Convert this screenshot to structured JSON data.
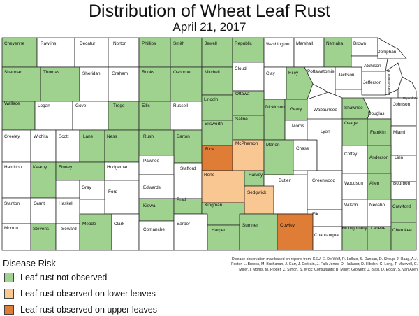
{
  "title": "Distribution of Wheat Leaf Rust",
  "subtitle": "April 21, 2017",
  "legend": {
    "title": "Disease Risk",
    "items": [
      {
        "key": "not_observed",
        "label": "Leaf rust not observed",
        "color": "#9fd18f"
      },
      {
        "key": "lower",
        "label": "Leaf rust observed on lower leaves",
        "color": "#f9c792"
      },
      {
        "key": "upper",
        "label": "Leaf rust observed on upper leaves",
        "color": "#df7d37"
      }
    ]
  },
  "status_colors": {
    "none": "#ffffff"
  },
  "credit": "Disease observation map based on reports from: KSU: E. De Wolf, R. Lollato, S. Duncan, D. Shoup, J. Haag, A.J. Foster, L. Brooks, M. Buchanan, J. Carr, J. Coltrain, J. Falk-Jones, D. Hallauer, D. Hibdon, C. Long, T. Maxwell, C. Miller, I. Morris, M. Ploger, Z. Simon, S. Wick; Consultants: B. Miller; Growers: J. Blasi, D. Edgar, S. Van Allen",
  "counties": [
    {
      "name": "Cheyenne",
      "status": "not_observed"
    },
    {
      "name": "Rawlins",
      "status": "none"
    },
    {
      "name": "Decatur",
      "status": "none"
    },
    {
      "name": "Norton",
      "status": "none"
    },
    {
      "name": "Phillips",
      "status": "not_observed"
    },
    {
      "name": "Smith",
      "status": "not_observed"
    },
    {
      "name": "Jewell",
      "status": "not_observed"
    },
    {
      "name": "Republic",
      "status": "not_observed"
    },
    {
      "name": "Washington",
      "status": "none"
    },
    {
      "name": "Marshall",
      "status": "none"
    },
    {
      "name": "Nemaha",
      "status": "not_observed"
    },
    {
      "name": "Brown",
      "status": "none"
    },
    {
      "name": "Doniphan",
      "status": "none"
    },
    {
      "name": "Sherman",
      "status": "not_observed"
    },
    {
      "name": "Thomas",
      "status": "not_observed"
    },
    {
      "name": "Sheridan",
      "status": "none"
    },
    {
      "name": "Graham",
      "status": "none"
    },
    {
      "name": "Rooks",
      "status": "not_observed"
    },
    {
      "name": "Osborne",
      "status": "not_observed"
    },
    {
      "name": "Mitchell",
      "status": "not_observed"
    },
    {
      "name": "Cloud",
      "status": "none"
    },
    {
      "name": "Clay",
      "status": "none"
    },
    {
      "name": "Riley",
      "status": "not_observed"
    },
    {
      "name": "Pottawatomie",
      "status": "none"
    },
    {
      "name": "Jackson",
      "status": "none"
    },
    {
      "name": "Atchison",
      "status": "none"
    },
    {
      "name": "Jefferson",
      "status": "none"
    },
    {
      "name": "Leavenworth",
      "status": "none"
    },
    {
      "name": "Wyandotte",
      "status": "none"
    },
    {
      "name": "Wallace",
      "status": "not_observed"
    },
    {
      "name": "Logan",
      "status": "none"
    },
    {
      "name": "Gove",
      "status": "none"
    },
    {
      "name": "Trego",
      "status": "not_observed"
    },
    {
      "name": "Ellis",
      "status": "not_observed"
    },
    {
      "name": "Russell",
      "status": "none"
    },
    {
      "name": "Lincoln",
      "status": "not_observed"
    },
    {
      "name": "Ottawa",
      "status": "not_observed"
    },
    {
      "name": "Dickinson",
      "status": "not_observed"
    },
    {
      "name": "Geary",
      "status": "not_observed"
    },
    {
      "name": "Wabaunsee",
      "status": "none"
    },
    {
      "name": "Shawnee",
      "status": "not_observed"
    },
    {
      "name": "Douglas",
      "status": "none"
    },
    {
      "name": "Johnson",
      "status": "none"
    },
    {
      "name": "Saline",
      "status": "not_observed"
    },
    {
      "name": "Morris",
      "status": "none"
    },
    {
      "name": "Osage",
      "status": "not_observed"
    },
    {
      "name": "Franklin",
      "status": "not_observed"
    },
    {
      "name": "Miami",
      "status": "none"
    },
    {
      "name": "Greeley",
      "status": "none"
    },
    {
      "name": "Wichita",
      "status": "none"
    },
    {
      "name": "Scott",
      "status": "none"
    },
    {
      "name": "Lane",
      "status": "not_observed"
    },
    {
      "name": "Ness",
      "status": "not_observed"
    },
    {
      "name": "Rush",
      "status": "not_observed"
    },
    {
      "name": "Barton",
      "status": "not_observed"
    },
    {
      "name": "Ellsworth",
      "status": "not_observed"
    },
    {
      "name": "McPherson",
      "status": "lower"
    },
    {
      "name": "Marion",
      "status": "not_observed"
    },
    {
      "name": "Chase",
      "status": "none"
    },
    {
      "name": "Lyon",
      "status": "none"
    },
    {
      "name": "Coffey",
      "status": "none"
    },
    {
      "name": "Anderson",
      "status": "not_observed"
    },
    {
      "name": "Linn",
      "status": "none"
    },
    {
      "name": "Rice",
      "status": "upper"
    },
    {
      "name": "Hamilton",
      "status": "none"
    },
    {
      "name": "Kearny",
      "status": "not_observed"
    },
    {
      "name": "Finney",
      "status": "not_observed"
    },
    {
      "name": "Hodgeman",
      "status": "none"
    },
    {
      "name": "Pawnee",
      "status": "none"
    },
    {
      "name": "Stafford",
      "status": "none"
    },
    {
      "name": "Reno",
      "status": "lower"
    },
    {
      "name": "Harvey",
      "status": "not_observed"
    },
    {
      "name": "Butler",
      "status": "none"
    },
    {
      "name": "Greenwood",
      "status": "none"
    },
    {
      "name": "Woodson",
      "status": "none"
    },
    {
      "name": "Allen",
      "status": "not_observed"
    },
    {
      "name": "Bourbon",
      "status": "none"
    },
    {
      "name": "Gray",
      "status": "none"
    },
    {
      "name": "Ford",
      "status": "none"
    },
    {
      "name": "Edwards",
      "status": "none"
    },
    {
      "name": "Sedgwick",
      "status": "lower"
    },
    {
      "name": "Stanton",
      "status": "none"
    },
    {
      "name": "Grant",
      "status": "none"
    },
    {
      "name": "Haskell",
      "status": "none"
    },
    {
      "name": "Kiowa",
      "status": "not_observed"
    },
    {
      "name": "Pratt",
      "status": "not_observed"
    },
    {
      "name": "Kingman",
      "status": "not_observed"
    },
    {
      "name": "Elk",
      "status": "none"
    },
    {
      "name": "Wilson",
      "status": "none"
    },
    {
      "name": "Neosho",
      "status": "none"
    },
    {
      "name": "Crawford",
      "status": "not_observed"
    },
    {
      "name": "Morton",
      "status": "none"
    },
    {
      "name": "Stevens",
      "status": "not_observed"
    },
    {
      "name": "Seward",
      "status": "none"
    },
    {
      "name": "Meade",
      "status": "not_observed"
    },
    {
      "name": "Clark",
      "status": "none"
    },
    {
      "name": "Comanche",
      "status": "none"
    },
    {
      "name": "Barber",
      "status": "none"
    },
    {
      "name": "Harper",
      "status": "not_observed"
    },
    {
      "name": "Sumner",
      "status": "not_observed"
    },
    {
      "name": "Cowley",
      "status": "upper"
    },
    {
      "name": "Chautauqua",
      "status": "none"
    },
    {
      "name": "Montgomery",
      "status": "not_observed"
    },
    {
      "name": "Labette",
      "status": "not_observed"
    },
    {
      "name": "Cherokee",
      "status": "not_observed"
    }
  ]
}
